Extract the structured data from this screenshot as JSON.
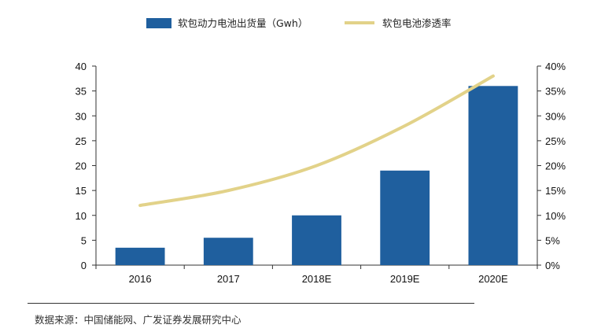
{
  "chart_data": {
    "type": "bar+line",
    "categories": [
      "2016",
      "2017",
      "2018E",
      "2019E",
      "2020E"
    ],
    "series": [
      {
        "name": "软包动力电池出货量（Gwh）",
        "type": "bar",
        "axis": "left",
        "values": [
          3.5,
          5.5,
          10,
          19,
          36
        ],
        "color": "#1f5f9e"
      },
      {
        "name": "软包电池渗透率",
        "type": "line",
        "axis": "right",
        "values": [
          0.12,
          0.15,
          0.2,
          0.28,
          0.38
        ],
        "color": "#e2d289"
      }
    ],
    "y_left": {
      "min": 0,
      "max": 40,
      "ticks": [
        0,
        5,
        10,
        15,
        20,
        25,
        30,
        35,
        40
      ]
    },
    "y_right": {
      "min": 0,
      "max": 0.4,
      "ticks": [
        0,
        0.05,
        0.1,
        0.15,
        0.2,
        0.25,
        0.3,
        0.35,
        0.4
      ],
      "tick_labels": [
        "0%",
        "5%",
        "10%",
        "15%",
        "20%",
        "25%",
        "30%",
        "35%",
        "40%"
      ]
    },
    "grid": false,
    "legend_position": "top"
  },
  "source_note": "数据来源：中国储能网、广发证券发展研究中心"
}
